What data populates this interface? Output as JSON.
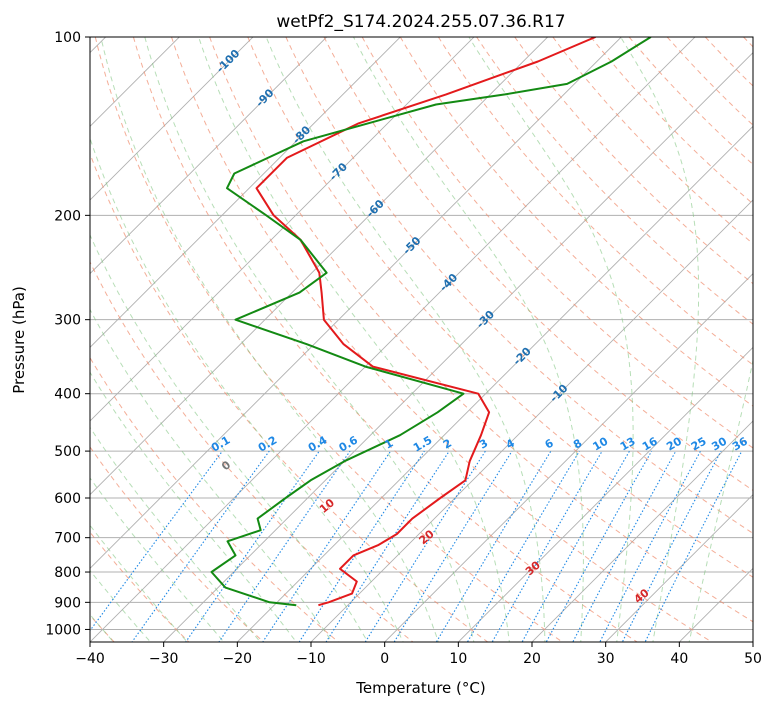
{
  "chart_data": {
    "type": "line",
    "title": "wetPf2_S174.2024.255.07.36.R17",
    "xlabel": "Temperature (°C)",
    "ylabel": "Pressure (hPa)",
    "xlim": [
      -40,
      50
    ],
    "ylim": [
      1050,
      100
    ],
    "y_scale": "log",
    "x_ticks": [
      -40,
      -30,
      -20,
      -10,
      0,
      10,
      20,
      30,
      40,
      50
    ],
    "y_ticks": [
      100,
      200,
      300,
      400,
      500,
      600,
      700,
      800,
      900,
      1000
    ],
    "grid": true,
    "colors": {
      "temperature": "#e31a1c",
      "dewpoint": "#138a13",
      "isotherm": "#b0b0b0",
      "dry_adiabat": "#f08c6c",
      "moist_adiabat": "#7cc27c",
      "mixing_ratio": "#1e88e5",
      "isotherm_label": "#1f6fb0"
    },
    "series": [
      {
        "role": "temperature",
        "points": [
          [
            100,
            -53.5
          ],
          [
            110,
            -58
          ],
          [
            125,
            -66
          ],
          [
            140,
            -74
          ],
          [
            160,
            -79
          ],
          [
            180,
            -79
          ],
          [
            200,
            -73
          ],
          [
            220,
            -66
          ],
          [
            250,
            -59
          ],
          [
            270,
            -56
          ],
          [
            300,
            -52
          ],
          [
            330,
            -46
          ],
          [
            360,
            -39
          ],
          [
            400,
            -21
          ],
          [
            430,
            -17
          ],
          [
            470,
            -15
          ],
          [
            520,
            -13
          ],
          [
            560,
            -11
          ],
          [
            600,
            -12
          ],
          [
            650,
            -13
          ],
          [
            690,
            -13
          ],
          [
            720,
            -14
          ],
          [
            750,
            -16
          ],
          [
            790,
            -16
          ],
          [
            830,
            -12
          ],
          [
            870,
            -11
          ],
          [
            900,
            -13
          ],
          [
            910,
            -14
          ]
        ]
      },
      {
        "role": "dewpoint",
        "points": [
          [
            100,
            -46
          ],
          [
            110,
            -48
          ],
          [
            120,
            -51
          ],
          [
            125,
            -58
          ],
          [
            130,
            -66
          ],
          [
            150,
            -79
          ],
          [
            170,
            -84
          ],
          [
            180,
            -83
          ],
          [
            200,
            -74
          ],
          [
            220,
            -66
          ],
          [
            250,
            -58
          ],
          [
            270,
            -59
          ],
          [
            300,
            -64
          ],
          [
            330,
            -51
          ],
          [
            360,
            -40
          ],
          [
            400,
            -23
          ],
          [
            430,
            -24
          ],
          [
            470,
            -26
          ],
          [
            520,
            -30
          ],
          [
            560,
            -32
          ],
          [
            600,
            -33
          ],
          [
            650,
            -34
          ],
          [
            680,
            -32
          ],
          [
            710,
            -35
          ],
          [
            750,
            -32
          ],
          [
            800,
            -33
          ],
          [
            850,
            -29
          ],
          [
            900,
            -21
          ],
          [
            910,
            -17
          ]
        ]
      }
    ],
    "isotherm_labels": [
      "-100",
      "-90",
      "-80",
      "-70",
      "-60",
      "-50",
      "-40",
      "-30",
      "-20",
      "-10"
    ],
    "mixing_ratio_labels": [
      "0.1",
      "0.2",
      "0.4",
      "0.6",
      "1",
      "1.5",
      "2",
      "3",
      "4",
      "6",
      "8",
      "10",
      "13",
      "16",
      "20",
      "25",
      "30",
      "36"
    ],
    "dry_adiabat_labels": [
      "0",
      "10",
      "20",
      "30",
      "40"
    ]
  }
}
